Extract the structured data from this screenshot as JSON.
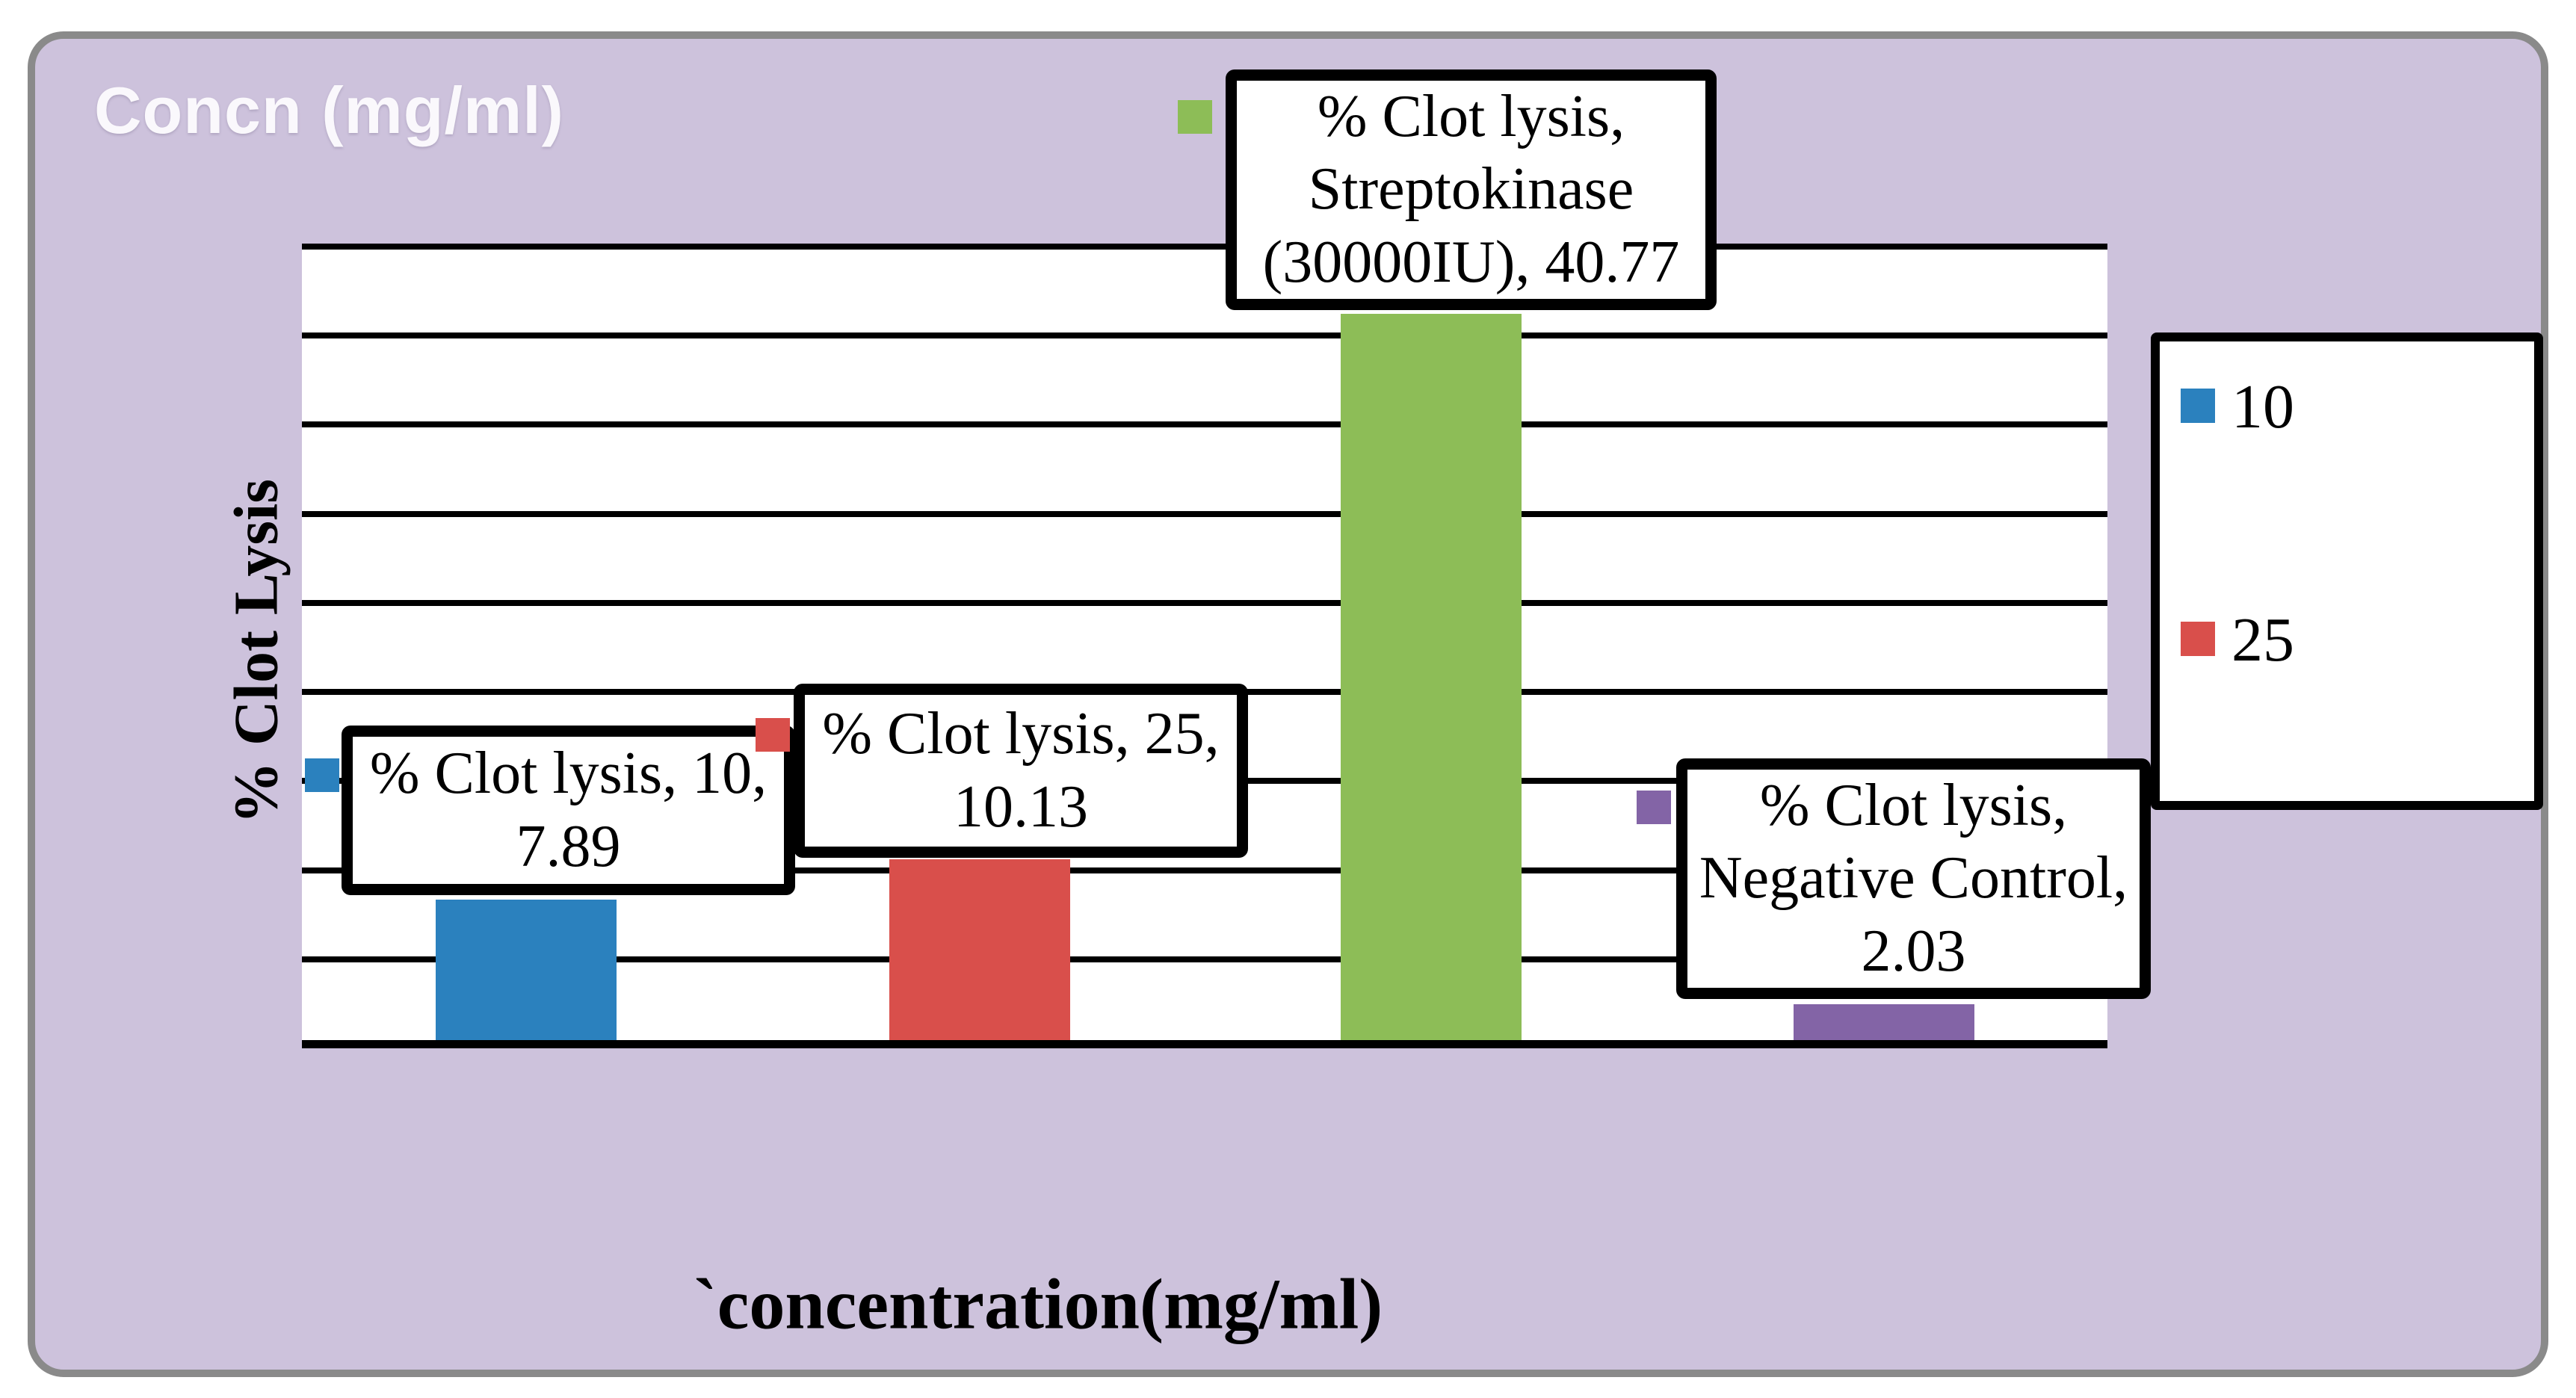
{
  "title": "Concn (mg/ml)",
  "axes": {
    "x_label": "`concentration(mg/ml)",
    "y_label": "% Clot Lysis"
  },
  "legend": {
    "items": [
      {
        "label": "10",
        "color": "#2B81BE"
      },
      {
        "label": "25",
        "color": "#D94F4B"
      }
    ]
  },
  "chart_data": {
    "type": "bar",
    "title": "Concn (mg/ml)",
    "xlabel": "`concentration(mg/ml)",
    "ylabel": "% Clot Lysis",
    "series_name": "% Clot lysis",
    "categories": [
      "10",
      "25",
      "Streptokinase (30000IU)",
      "Negative Control"
    ],
    "values": [
      7.89,
      10.13,
      40.77,
      2.03
    ],
    "bar_colors": [
      "#2B81BE",
      "#D94F4B",
      "#8DBD57",
      "#8364A6"
    ],
    "data_labels": [
      "% Clot lysis, 10, 7.89",
      "% Clot lysis, 25, 10.13",
      "% Clot lysis, Streptokinase (30000IU), 40.77",
      "% Clot lysis, Negative Control, 2.03"
    ],
    "ylim": [
      0,
      45
    ],
    "grid_step": 5,
    "gridlines": "horizontal",
    "y_tick_labels_visible": false,
    "legend_position": "right",
    "legend_visible_entries": [
      "10",
      "25"
    ]
  },
  "colors": {
    "card_bg": "#CDC2DC",
    "card_border": "#8A8A8A",
    "plot_bg": "#FFFFFF",
    "grid": "#000000",
    "label_box_bg": "#FFFFFF",
    "label_box_border": "#000000",
    "title_text": "#FAF8FC",
    "axis_text": "#000000"
  }
}
